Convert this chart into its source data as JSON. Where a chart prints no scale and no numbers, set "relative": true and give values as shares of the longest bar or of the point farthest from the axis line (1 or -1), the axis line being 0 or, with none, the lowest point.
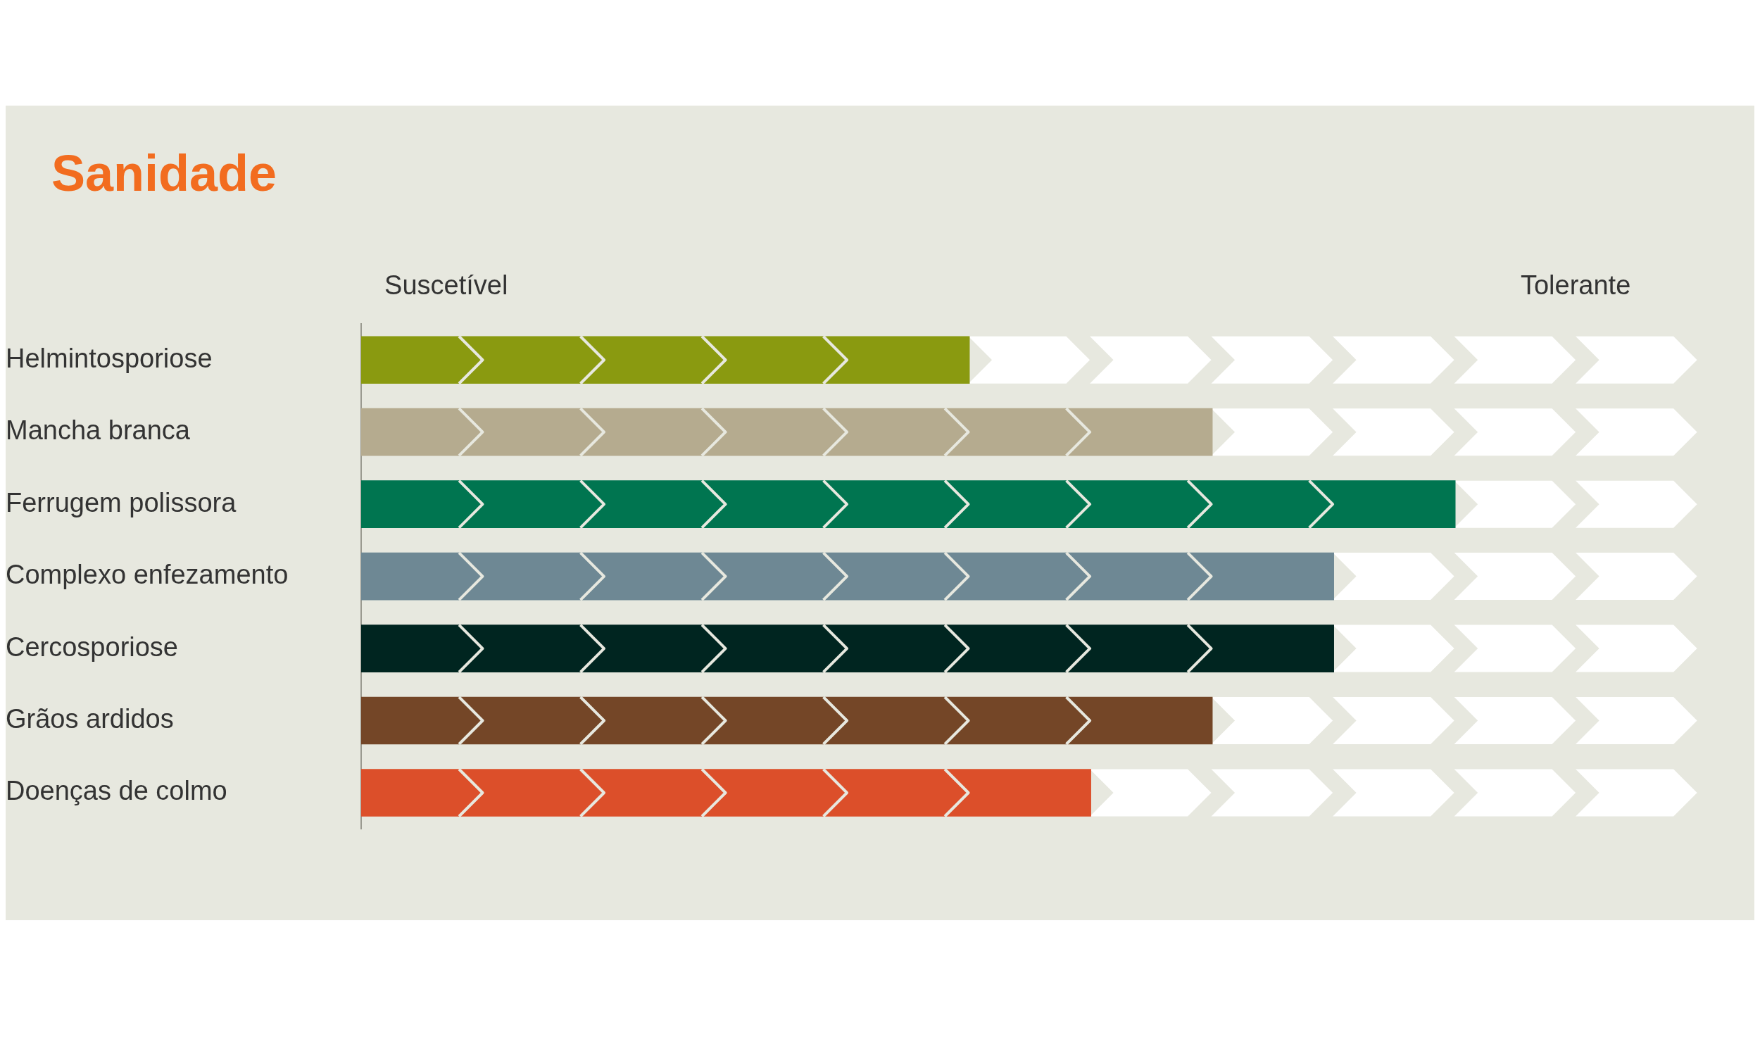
{
  "chart_data": {
    "type": "bar",
    "title": "Sanidade",
    "orientation": "horizontal",
    "relative": true,
    "categories": [
      "Helmintosporiose",
      "Mancha branca",
      "Ferrugem polissora",
      "Complexo enfezamento",
      "Cercosporiose",
      "Grãos ardidos",
      "Doenças de colmo"
    ],
    "values": [
      0.556,
      0.778,
      1,
      0.889,
      0.889,
      0.778,
      0.667
    ],
    "colors": [
      "#8a9a10",
      "#b5ab8f",
      "#007550",
      "#6e8894",
      "#002520",
      "#744627",
      "#dc4f2a"
    ],
    "annotations": [
      "Suscetível",
      "Tolerante"
    ]
  }
}
